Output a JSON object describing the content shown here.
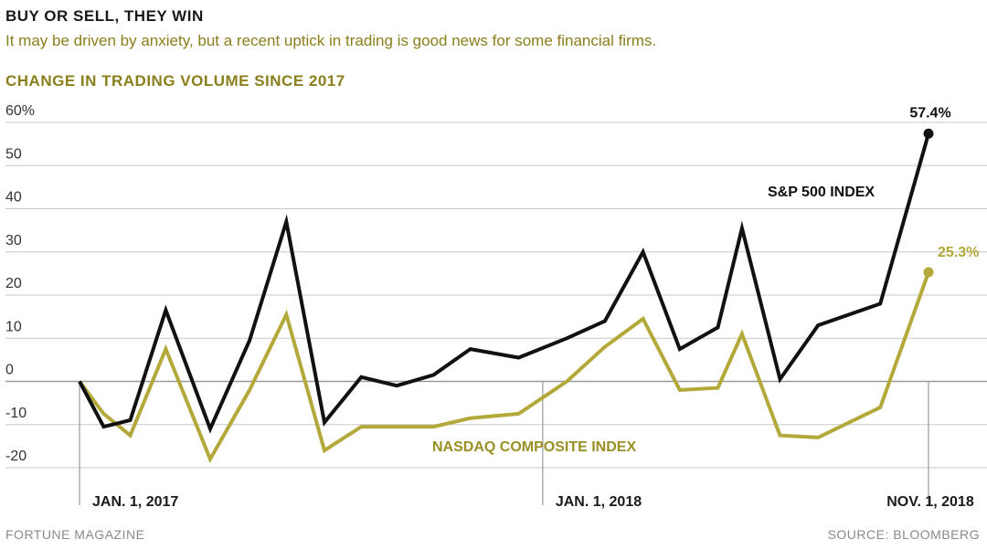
{
  "header": {
    "title": "BUY OR SELL, THEY WIN",
    "subtitle": "It may be driven by anxiety, but a recent uptick in trading is good news for some financial firms.",
    "chart_label": "CHANGE IN TRADING VOLUME SINCE 2017"
  },
  "footer": {
    "left": "FORTUNE MAGAZINE",
    "right": "SOURCE: BLOOMBERG"
  },
  "colors": {
    "sp500": "#111111",
    "nasdaq": "#b3a93a",
    "grid": "#c8c8c8"
  },
  "chart_data": {
    "type": "line",
    "title": "CHANGE IN TRADING VOLUME SINCE 2017",
    "xlabel": "",
    "ylabel": "",
    "ylim": [
      -20,
      60
    ],
    "yticks": [
      60,
      50,
      40,
      30,
      20,
      10,
      0,
      -10,
      -20
    ],
    "ytick_labels": [
      "60%",
      "50",
      "40",
      "30",
      "20",
      "10",
      "0",
      "-10",
      "-20"
    ],
    "x_range": [
      "2017-01-01",
      "2018-11-01"
    ],
    "x_labels": [
      {
        "date": "2017-01-01",
        "text": "JAN. 1, 2017"
      },
      {
        "date": "2018-01-01",
        "text": "JAN. 1, 2018"
      },
      {
        "date": "2018-11-01",
        "text": "NOV. 1, 2018"
      }
    ],
    "grid": true,
    "series": [
      {
        "name": "S&P 500 INDEX",
        "end_label": "57.4%",
        "points": [
          [
            "2017-01-01",
            0
          ],
          [
            "2017-01-20",
            -10.5
          ],
          [
            "2017-02-10",
            -9
          ],
          [
            "2017-03-10",
            16.5
          ],
          [
            "2017-04-14",
            -11
          ],
          [
            "2017-05-15",
            9.5
          ],
          [
            "2017-06-13",
            37
          ],
          [
            "2017-07-13",
            -9.5
          ],
          [
            "2017-08-11",
            1
          ],
          [
            "2017-09-08",
            -1
          ],
          [
            "2017-10-07",
            1.5
          ],
          [
            "2017-11-05",
            7.5
          ],
          [
            "2017-12-13",
            5.5
          ],
          [
            "2018-01-20",
            10
          ],
          [
            "2018-02-19",
            14
          ],
          [
            "2018-03-21",
            30
          ],
          [
            "2018-04-19",
            7.5
          ],
          [
            "2018-05-19",
            12.5
          ],
          [
            "2018-06-07",
            35.5
          ],
          [
            "2018-07-07",
            0.5
          ],
          [
            "2018-08-06",
            13
          ],
          [
            "2018-09-24",
            18
          ],
          [
            "2018-11-01",
            57.4
          ]
        ]
      },
      {
        "name": "NASDAQ COMPOSITE INDEX",
        "end_label": "25.3%",
        "points": [
          [
            "2017-01-01",
            0
          ],
          [
            "2017-01-20",
            -7.5
          ],
          [
            "2017-02-10",
            -12.5
          ],
          [
            "2017-03-10",
            7.5
          ],
          [
            "2017-04-14",
            -18
          ],
          [
            "2017-05-15",
            -2
          ],
          [
            "2017-06-13",
            15.5
          ],
          [
            "2017-07-13",
            -16
          ],
          [
            "2017-08-11",
            -10.5
          ],
          [
            "2017-09-08",
            -10.5
          ],
          [
            "2017-10-07",
            -10.5
          ],
          [
            "2017-11-05",
            -8.5
          ],
          [
            "2017-12-13",
            -7.5
          ],
          [
            "2018-01-20",
            0
          ],
          [
            "2018-02-19",
            8
          ],
          [
            "2018-03-21",
            14.5
          ],
          [
            "2018-04-19",
            -2
          ],
          [
            "2018-05-19",
            -1.5
          ],
          [
            "2018-06-07",
            11
          ],
          [
            "2018-07-07",
            -12.5
          ],
          [
            "2018-08-06",
            -13
          ],
          [
            "2018-09-24",
            -6
          ],
          [
            "2018-11-01",
            25.3
          ]
        ]
      }
    ]
  }
}
